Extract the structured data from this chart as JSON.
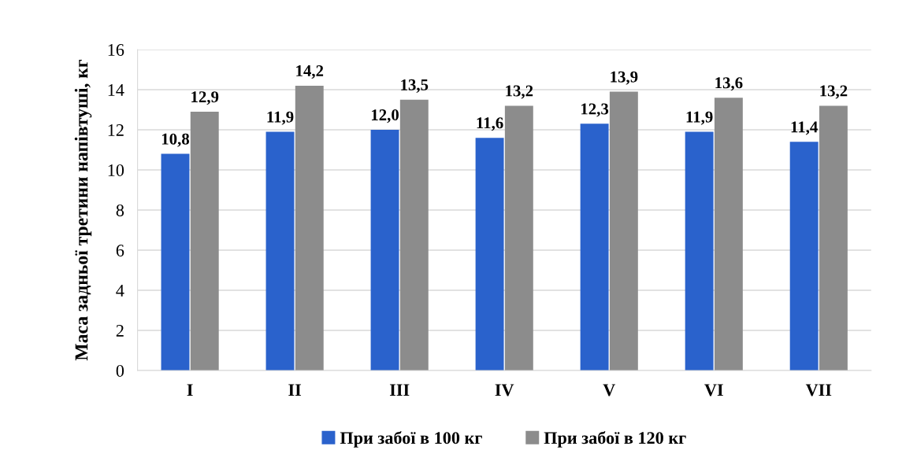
{
  "chart_data": {
    "type": "bar",
    "ylabel": "Маса задньої третини напівтуші, кг",
    "categories": [
      "I",
      "II",
      "III",
      "IV",
      "V",
      "VI",
      "VII"
    ],
    "series": [
      {
        "name": "При забої в 100 кг",
        "color": "#2a62cc",
        "values": [
          10.8,
          11.9,
          12.0,
          11.6,
          12.3,
          11.9,
          11.4
        ],
        "value_labels": [
          "10,8",
          "11,9",
          "12,0",
          "11,6",
          "12,3",
          "11,9",
          "11,4"
        ]
      },
      {
        "name": "При забої в 120 кг",
        "color": "#8c8c8c",
        "values": [
          12.9,
          14.2,
          13.5,
          13.2,
          13.9,
          13.6,
          13.2
        ],
        "value_labels": [
          "12,9",
          "14,2",
          "13,5",
          "13,2",
          "13,9",
          "13,6",
          "13,2"
        ]
      }
    ],
    "ylim": [
      0,
      16
    ],
    "yticks": [
      0,
      2,
      4,
      6,
      8,
      10,
      12,
      14,
      16
    ],
    "grid": "y",
    "legend": "bottom"
  }
}
